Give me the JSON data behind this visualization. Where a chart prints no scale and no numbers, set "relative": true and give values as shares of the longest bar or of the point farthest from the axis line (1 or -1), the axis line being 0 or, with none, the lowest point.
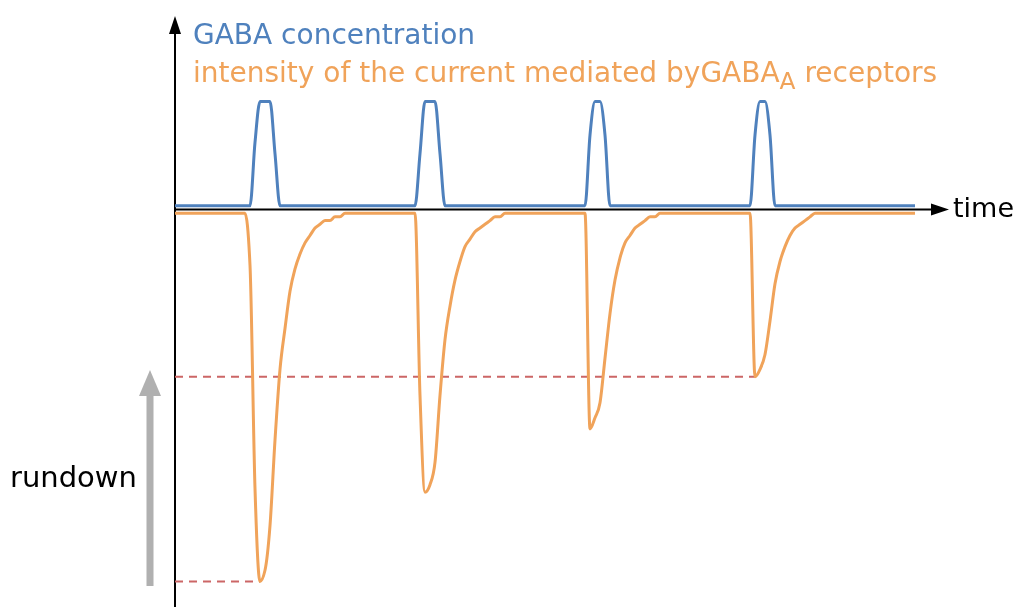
{
  "chart_data": {
    "type": "line",
    "relative": true,
    "xlabel": "time",
    "legend": "top left",
    "marker": "none",
    "categories": [
      null,
      null,
      null,
      null,
      null,
      null,
      null,
      null,
      null,
      null,
      null,
      null,
      null,
      null,
      null,
      null,
      null,
      null,
      null,
      null,
      null,
      null,
      null,
      null,
      null,
      null,
      null,
      null,
      null,
      null,
      null,
      null,
      null,
      null,
      null,
      null,
      null,
      null,
      null,
      null,
      null,
      null,
      null,
      null,
      null,
      null,
      null,
      null,
      null,
      null,
      null,
      null,
      null,
      null,
      null,
      null,
      null,
      null,
      null,
      null,
      null,
      null,
      null,
      null,
      null,
      null,
      null,
      null,
      null,
      null,
      null,
      null,
      null,
      null,
      null,
      null,
      null,
      null,
      null,
      null,
      null,
      null,
      null,
      null,
      null,
      null,
      null,
      null,
      null,
      null,
      null,
      null,
      null,
      null,
      null,
      null,
      null,
      null,
      null,
      null,
      null,
      null,
      null,
      null,
      null,
      null,
      null,
      null,
      null,
      null,
      null,
      null,
      null,
      null,
      null,
      null,
      null,
      null,
      null,
      null,
      null,
      null,
      null,
      null,
      null,
      null,
      null,
      null,
      null,
      null,
      null,
      null,
      null,
      null,
      null,
      null,
      null,
      null,
      null,
      null,
      null,
      null,
      null,
      null,
      null,
      null,
      null,
      null,
      null
    ],
    "series": [
      {
        "name": "GABA concentration",
        "color": "#4f81bd",
        "values": [
          0.01,
          0.01,
          0.01,
          0.01,
          0.01,
          0.01,
          0.01,
          0.01,
          0.01,
          0.01,
          0.01,
          0.01,
          0.01,
          0.01,
          0.01,
          0.01,
          0.18,
          0.29,
          0.29,
          0.29,
          0.15,
          0.01,
          0.01,
          0.01,
          0.01,
          0.01,
          0.01,
          0.01,
          0.01,
          0.01,
          0.01,
          0.01,
          0.01,
          0.01,
          0.01,
          0.01,
          0.01,
          0.01,
          0.01,
          0.01,
          0.01,
          0.01,
          0.01,
          0.01,
          0.01,
          0.01,
          0.01,
          0.01,
          0.01,
          0.15,
          0.29,
          0.29,
          0.29,
          0.15,
          0.01,
          0.01,
          0.01,
          0.01,
          0.01,
          0.01,
          0.01,
          0.01,
          0.01,
          0.01,
          0.01,
          0.01,
          0.01,
          0.01,
          0.01,
          0.01,
          0.01,
          0.01,
          0.01,
          0.01,
          0.01,
          0.01,
          0.01,
          0.01,
          0.01,
          0.01,
          0.01,
          0.01,
          0.01,
          0.2,
          0.29,
          0.29,
          0.2,
          0.01,
          0.01,
          0.01,
          0.01,
          0.01,
          0.01,
          0.01,
          0.01,
          0.01,
          0.01,
          0.01,
          0.01,
          0.01,
          0.01,
          0.01,
          0.01,
          0.01,
          0.01,
          0.01,
          0.01,
          0.01,
          0.01,
          0.01,
          0.01,
          0.01,
          0.01,
          0.01,
          0.01,
          0.01,
          0.2,
          0.29,
          0.29,
          0.2,
          0.01,
          0.01,
          0.01,
          0.01,
          0.01,
          0.01,
          0.01,
          0.01,
          0.01,
          0.01,
          0.01,
          0.01,
          0.01,
          0.01,
          0.01,
          0.01,
          0.01,
          0.01,
          0.01,
          0.01,
          0.01,
          0.01,
          0.01,
          0.01,
          0.01,
          0.01,
          0.01,
          0.01,
          0.01
        ]
      },
      {
        "name": "intensity of the current mediated byGABA$_{A}$ receptors",
        "color": "#f0a35a",
        "values": [
          -0.01,
          -0.01,
          -0.01,
          -0.01,
          -0.01,
          -0.01,
          -0.01,
          -0.01,
          -0.01,
          -0.01,
          -0.01,
          -0.01,
          -0.01,
          -0.01,
          -0.01,
          -0.15,
          -0.75,
          -1,
          -0.97,
          -0.85,
          -0.62,
          -0.43,
          -0.32,
          -0.22,
          -0.16,
          -0.12,
          -0.09,
          -0.07,
          -0.05,
          -0.04,
          -0.03,
          -0.03,
          -0.02,
          -0.02,
          -0.01,
          -0.01,
          -0.01,
          -0.01,
          -0.01,
          -0.01,
          -0.01,
          -0.01,
          -0.01,
          -0.01,
          -0.01,
          -0.01,
          -0.01,
          -0.01,
          -0.01,
          -0.5,
          -0.76,
          -0.74,
          -0.68,
          -0.5,
          -0.35,
          -0.26,
          -0.19,
          -0.14,
          -0.1,
          -0.08,
          -0.06,
          -0.05,
          -0.04,
          -0.03,
          -0.02,
          -0.02,
          -0.01,
          -0.01,
          -0.01,
          -0.01,
          -0.01,
          -0.01,
          -0.01,
          -0.01,
          -0.01,
          -0.01,
          -0.01,
          -0.01,
          -0.01,
          -0.01,
          -0.01,
          -0.01,
          -0.01,
          -0.59,
          -0.56,
          -0.52,
          -0.4,
          -0.28,
          -0.19,
          -0.13,
          -0.09,
          -0.07,
          -0.05,
          -0.04,
          -0.03,
          -0.02,
          -0.02,
          -0.01,
          -0.01,
          -0.01,
          -0.01,
          -0.01,
          -0.01,
          -0.01,
          -0.01,
          -0.01,
          -0.01,
          -0.01,
          -0.01,
          -0.01,
          -0.01,
          -0.01,
          -0.01,
          -0.01,
          -0.01,
          -0.01,
          -0.45,
          -0.43,
          -0.39,
          -0.3,
          -0.2,
          -0.14,
          -0.1,
          -0.07,
          -0.05,
          -0.04,
          -0.03,
          -0.02,
          -0.01,
          -0.01,
          -0.01,
          -0.01,
          -0.01,
          -0.01,
          -0.01,
          -0.01,
          -0.01,
          -0.01,
          -0.01,
          -0.01,
          -0.01,
          -0.01,
          -0.01,
          -0.01,
          -0.01,
          -0.01,
          -0.01,
          -0.01,
          -0.01
        ]
      }
    ],
    "ref_lines": [
      {
        "axis": "y",
        "value": -1,
        "color": "#cc6666",
        "line_style": "dashed"
      },
      {
        "axis": "y",
        "value": -0.45,
        "color": "#cc6666",
        "line_style": "dashed"
      }
    ],
    "annotations": [
      "rundown"
    ]
  }
}
